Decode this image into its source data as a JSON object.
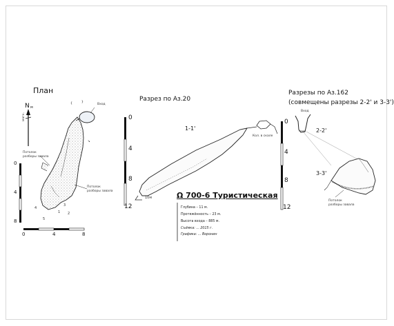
{
  "plan": {
    "title": "План",
    "north": "N",
    "north_sub": "м",
    "magnetic": "магн.",
    "entrance_label": "Вход",
    "debris1_label": [
      "Потолок",
      "разборы завала"
    ],
    "debris2_label": [
      "Потолок",
      "разборы завала"
    ],
    "marks": [
      "4",
      "5",
      "1",
      "2",
      "3"
    ],
    "scale_ticks": [
      "0",
      "4",
      "8"
    ],
    "scale_x_ticks": [
      "0",
      "4",
      "8"
    ]
  },
  "section1": {
    "title": "Разрез по Аз.20",
    "label": "1-1'",
    "entrance_note": "Кол. в скале",
    "depth_note": "10м",
    "scale_ticks": [
      "0",
      "4",
      "8",
      "12"
    ]
  },
  "section2": {
    "title": "Разрезы по Аз.162",
    "subtitle": "(совмещены разрезы 2-2' и 3-3')",
    "entrance_label": "Вход",
    "label_a": "2-2'",
    "label_b": "3-3'",
    "debris_label": [
      "Потолок",
      "разборы завала"
    ],
    "scale_ticks": [
      "0",
      "4",
      "8",
      "12"
    ]
  },
  "cave": {
    "title": "Ω 700-6 Туристическая",
    "info": [
      "Глубина – 11 м.",
      "Протяжённость – 23 м.",
      "Высота входа – 885 м.",
      "Съёмка: ... 2015 г.",
      "Графика: ... Воронин"
    ]
  }
}
